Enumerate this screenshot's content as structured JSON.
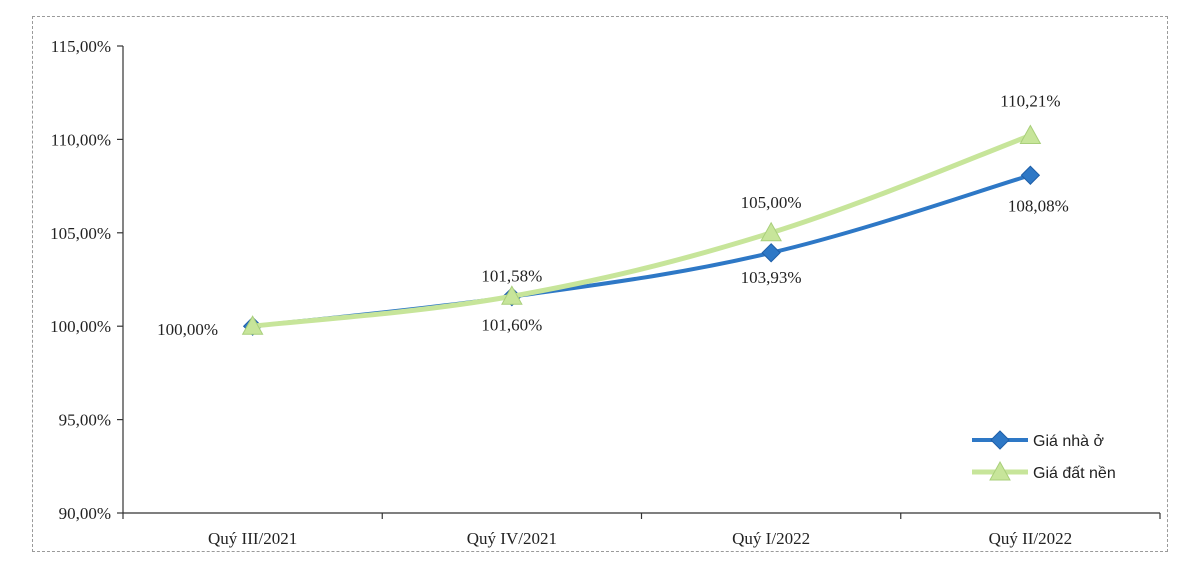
{
  "chart_data": {
    "type": "line",
    "categories": [
      "Quý III/2021",
      "Quý IV/2021",
      "Quý I/2022",
      "Quý II/2022"
    ],
    "y_ticks": [
      "90,00%",
      "95,00%",
      "100,00%",
      "105,00%",
      "110,00%",
      "115,00%"
    ],
    "ylim": [
      90,
      115
    ],
    "grid": false,
    "legend_position": "bottom-right",
    "series": [
      {
        "name": "Giá nhà ở",
        "values": [
          100.0,
          101.58,
          103.93,
          108.08
        ],
        "labels": [
          "100,00%",
          "101,58%",
          "103,93%",
          "108,08%"
        ],
        "color": "#2e78c6",
        "marker": "diamond"
      },
      {
        "name": "Giá đất nền",
        "values": [
          100.0,
          101.6,
          105.0,
          110.21
        ],
        "labels": [
          "",
          "101,60%",
          "105,00%",
          "110,21%"
        ],
        "color": "#c7e59a",
        "marker": "triangle"
      }
    ]
  }
}
